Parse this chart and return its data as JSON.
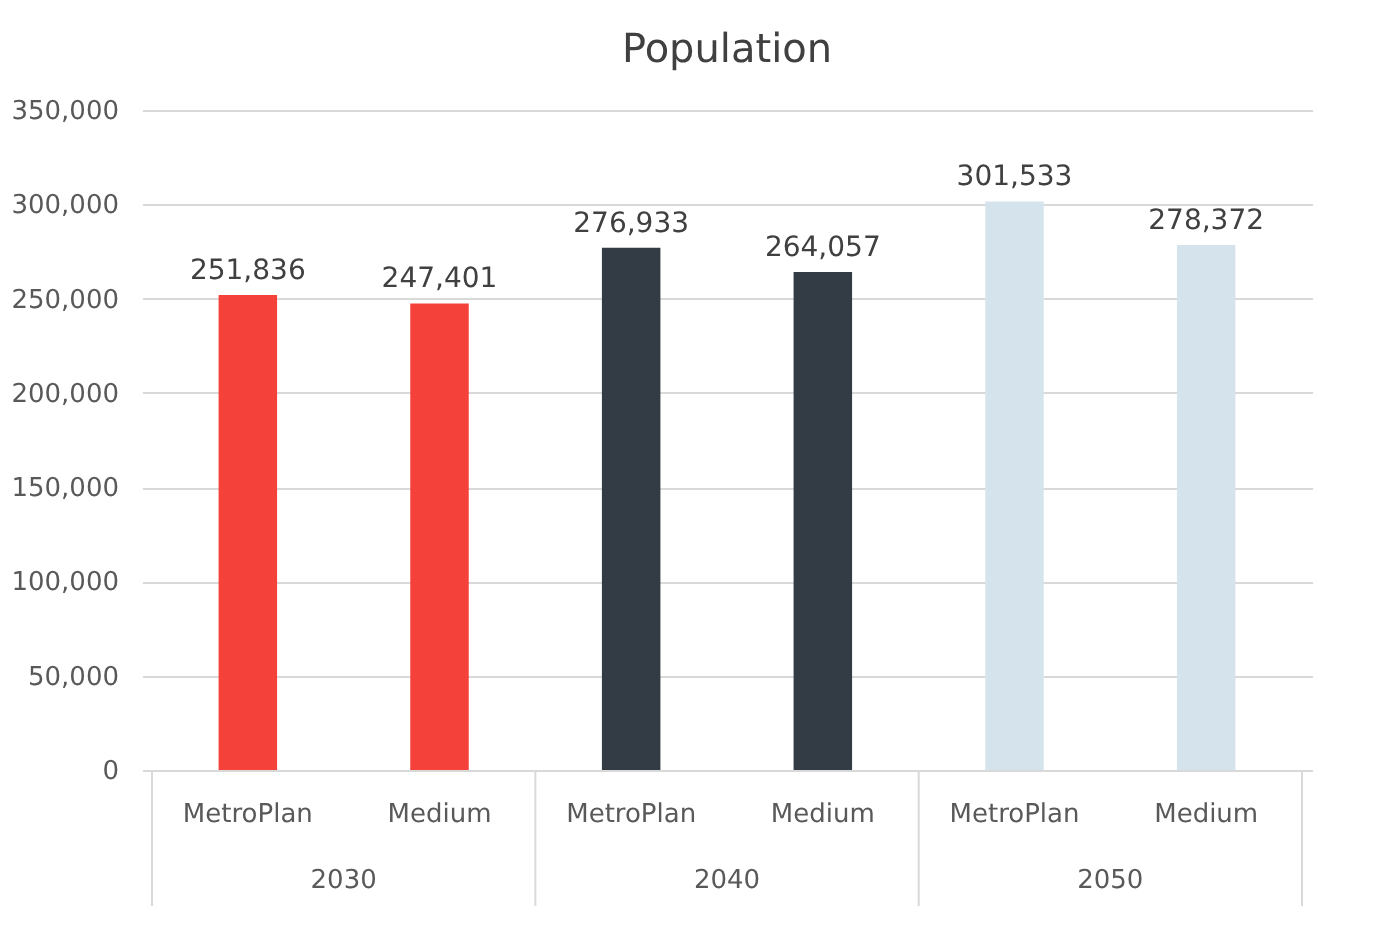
{
  "chart_data": {
    "type": "bar",
    "title": "Population",
    "categories": [
      "MetroPlan",
      "Medium",
      "MetroPlan",
      "Medium",
      "MetroPlan",
      "Medium"
    ],
    "values": [
      251836,
      247401,
      276933,
      264057,
      301533,
      278372
    ],
    "colors": [
      "#f4413a",
      "#f4413a",
      "#333b45",
      "#333b45",
      "#d5e3ed",
      "#d5e3ed"
    ],
    "annotations": [
      "2030",
      "2040",
      "2050"
    ],
    "value_labels": [
      "251,836",
      "247,401",
      "276,933",
      "264,057",
      "301,533",
      "278,372"
    ],
    "ylim": [
      0,
      350000
    ],
    "yticks": [
      0,
      {
        "value": 50000,
        "label": "50,000"
      },
      {
        "value": 100000,
        "label": "100,000"
      },
      {
        "value": 150000,
        "label": "150,000"
      },
      {
        "value": 200000,
        "label": "200,000"
      },
      {
        "value": 250000,
        "label": "250,000"
      },
      {
        "value": 300000,
        "label": "300,000"
      },
      {
        "value": 350000,
        "label": "350,000"
      }
    ],
    "grid": "y"
  }
}
